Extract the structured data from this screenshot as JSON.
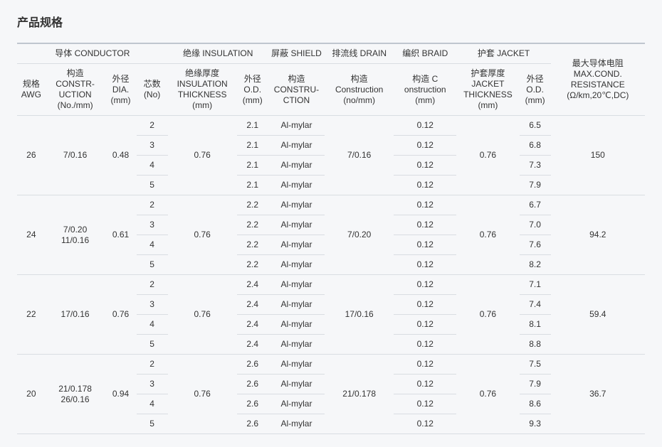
{
  "title": "产品规格",
  "headers_top": {
    "conductor": "导体 CONDUCTOR",
    "insulation": "绝缘 INSULATION",
    "shield": "屏蔽 SHIELD",
    "drain": "排流线 DRAIN",
    "braid": "编织 BRAID",
    "jacket": "护套 JACKET",
    "maxres": "最大导体电阻 MAX.COND. RESISTANCE (Ω/km,20℃,DC)"
  },
  "headers_sub": {
    "awg": "规格 AWG",
    "construction": "构造 CONSTR-UCTION (No./mm)",
    "dia": "外径 DIA. (mm)",
    "core": "芯数 (No)",
    "ins_thk": "绝缘厚度 INSULATION THICKNESS (mm)",
    "ins_od": "外径 O.D. (mm)",
    "shield_c": "构造 CONSTRU-CTION",
    "drain_c": "构造 Construction (no/mm)",
    "braid_c": "构造 C onstruction (mm)",
    "jk_thk": "护套厚度 JACKET THICKNESS (mm)",
    "jk_od": "外径 O.D. (mm)"
  },
  "groups": [
    {
      "awg": "26",
      "constr_a": "7/0.16",
      "constr_b": "",
      "dia": "0.48",
      "ins_thk": "0.76",
      "drain": "7/0.16",
      "jk_thk": "0.76",
      "maxres": "150",
      "rows": [
        {
          "core": "2",
          "ins_od": "2.1",
          "shield": "Al-mylar",
          "braid": "0.12",
          "jk_od": "6.5"
        },
        {
          "core": "3",
          "ins_od": "2.1",
          "shield": "Al-mylar",
          "braid": "0.12",
          "jk_od": "6.8"
        },
        {
          "core": "4",
          "ins_od": "2.1",
          "shield": "Al-mylar",
          "braid": "0.12",
          "jk_od": "7.3"
        },
        {
          "core": "5",
          "ins_od": "2.1",
          "shield": "Al-mylar",
          "braid": "0.12",
          "jk_od": "7.9"
        }
      ]
    },
    {
      "awg": "24",
      "constr_a": "7/0.20",
      "constr_b": "11/0.16",
      "dia": "0.61",
      "ins_thk": "0.76",
      "drain": "7/0.20",
      "jk_thk": "0.76",
      "maxres": "94.2",
      "rows": [
        {
          "core": "2",
          "ins_od": "2.2",
          "shield": "Al-mylar",
          "braid": "0.12",
          "jk_od": "6.7"
        },
        {
          "core": "3",
          "ins_od": "2.2",
          "shield": "Al-mylar",
          "braid": "0.12",
          "jk_od": "7.0"
        },
        {
          "core": "4",
          "ins_od": "2.2",
          "shield": "Al-mylar",
          "braid": "0.12",
          "jk_od": "7.6"
        },
        {
          "core": "5",
          "ins_od": "2.2",
          "shield": "Al-mylar",
          "braid": "0.12",
          "jk_od": "8.2"
        }
      ]
    },
    {
      "awg": "22",
      "constr_a": "17/0.16",
      "constr_b": "",
      "dia": "0.76",
      "ins_thk": "0.76",
      "drain": "17/0.16",
      "jk_thk": "0.76",
      "maxres": "59.4",
      "rows": [
        {
          "core": "2",
          "ins_od": "2.4",
          "shield": "Al-mylar",
          "braid": "0.12",
          "jk_od": "7.1"
        },
        {
          "core": "3",
          "ins_od": "2.4",
          "shield": "Al-mylar",
          "braid": "0.12",
          "jk_od": "7.4"
        },
        {
          "core": "4",
          "ins_od": "2.4",
          "shield": "Al-mylar",
          "braid": "0.12",
          "jk_od": "8.1"
        },
        {
          "core": "5",
          "ins_od": "2.4",
          "shield": "Al-mylar",
          "braid": "0.12",
          "jk_od": "8.8"
        }
      ]
    },
    {
      "awg": "20",
      "constr_a": "21/0.178",
      "constr_b": "26/0.16",
      "dia": "0.94",
      "ins_thk": "0.76",
      "drain": "21/0.178",
      "jk_thk": "0.76",
      "maxres": "36.7",
      "rows": [
        {
          "core": "2",
          "ins_od": "2.6",
          "shield": "Al-mylar",
          "braid": "0.12",
          "jk_od": "7.5"
        },
        {
          "core": "3",
          "ins_od": "2.6",
          "shield": "Al-mylar",
          "braid": "0.12",
          "jk_od": "7.9"
        },
        {
          "core": "4",
          "ins_od": "2.6",
          "shield": "Al-mylar",
          "braid": "0.12",
          "jk_od": "8.6"
        },
        {
          "core": "5",
          "ins_od": "2.6",
          "shield": "Al-mylar",
          "braid": "0.12",
          "jk_od": "9.3"
        }
      ]
    }
  ]
}
